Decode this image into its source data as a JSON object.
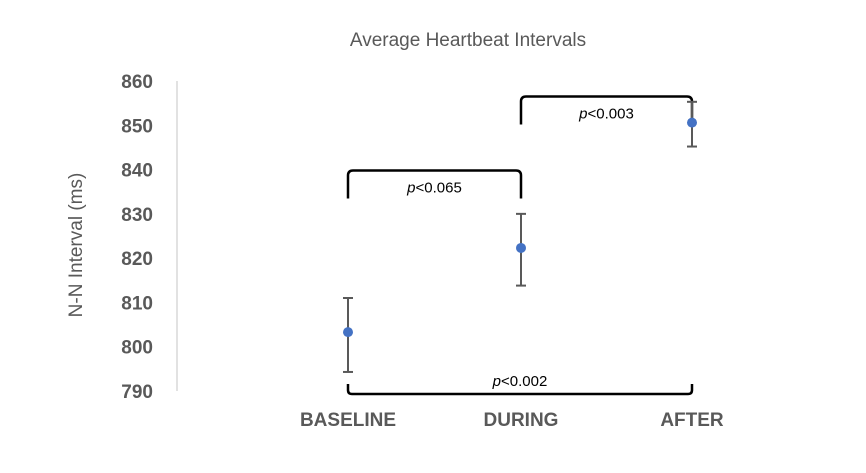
{
  "chart_data": {
    "type": "scatter",
    "title": "Average Heartbeat Intervals",
    "ylabel": "N-N Interval (ms)",
    "xlabel": "",
    "ylim": [
      790,
      860
    ],
    "yticks": [
      790,
      800,
      810,
      820,
      830,
      840,
      850,
      860
    ],
    "categories": [
      "BASELINE",
      "DURING",
      "AFTER"
    ],
    "values": [
      803.3,
      822.3,
      850.6
    ],
    "error_low": [
      794.3,
      813.8,
      845.2
    ],
    "error_high": [
      811.0,
      830.0,
      855.3
    ],
    "grid": false,
    "point_color": "#4472c4",
    "error_color": "#595959",
    "annotations": [
      {
        "prefix": "p",
        "text": "<0.065",
        "from": "BASELINE",
        "to": "DURING",
        "bracket": "top"
      },
      {
        "prefix": "p",
        "text": "<0.003",
        "from": "DURING",
        "to": "AFTER",
        "bracket": "top"
      },
      {
        "prefix": "p",
        "text": "<0.002",
        "from": "BASELINE",
        "to": "AFTER",
        "bracket": "bottom"
      }
    ]
  }
}
